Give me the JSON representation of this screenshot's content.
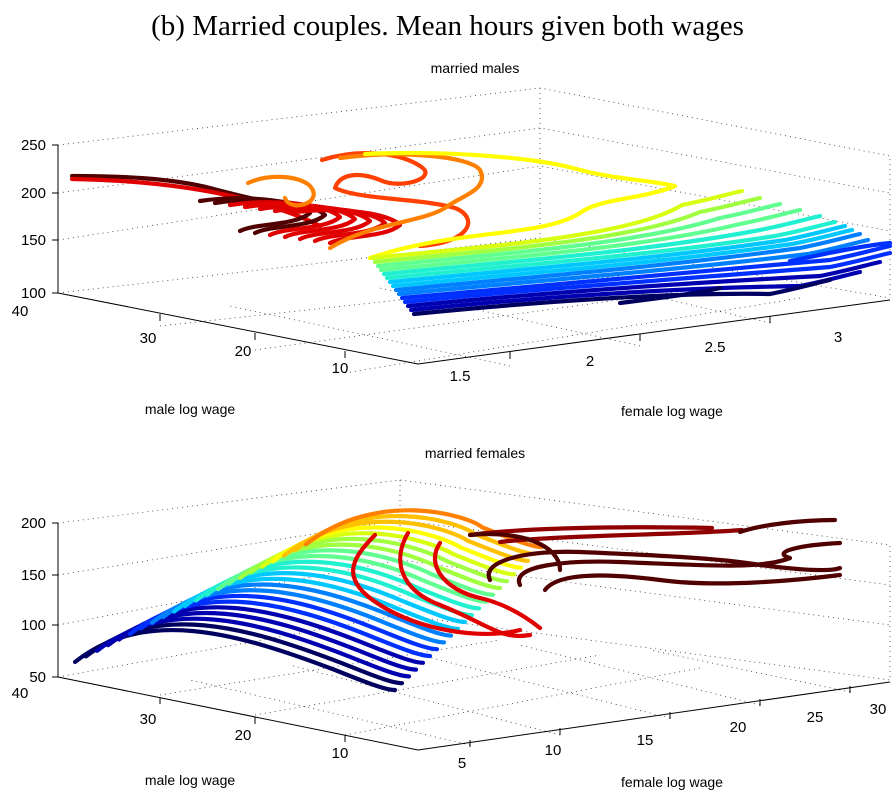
{
  "figure": {
    "title": "(b) Married couples. Mean hours given both wages"
  },
  "chart_data": [
    {
      "type": "contour3d",
      "title": "married males",
      "xlabel": "female log wage",
      "ylabel": "male log wage",
      "zlabel": "",
      "xlim": [
        1.3,
        3.6
      ],
      "ylim": [
        5,
        42
      ],
      "zlim": [
        100,
        250
      ],
      "xticks": [
        "1.5",
        "2",
        "2.5",
        "3"
      ],
      "yticks": [
        "40",
        "30",
        "20",
        "10"
      ],
      "zticks": [
        "100",
        "150",
        "200",
        "250"
      ],
      "grid": true,
      "colormap": "jet",
      "note_levels": "contour levels run from dark blue (low hours) to dark red (high hours)"
    },
    {
      "type": "contour3d",
      "title": "married females",
      "xlabel": "female log wage",
      "ylabel": "male log wage",
      "zlabel": "",
      "xlim": [
        3,
        32
      ],
      "ylim": [
        5,
        42
      ],
      "zlim": [
        50,
        200
      ],
      "xticks": [
        "5",
        "10",
        "15",
        "20",
        "25",
        "30"
      ],
      "yticks": [
        "40",
        "30",
        "20",
        "10"
      ],
      "zticks": [
        "50",
        "100",
        "150",
        "200"
      ],
      "grid": true,
      "colormap": "jet"
    }
  ],
  "colors": {
    "jet": [
      "#000060",
      "#0000b0",
      "#0030ff",
      "#0080ff",
      "#00c8ff",
      "#20f0d0",
      "#60ff90",
      "#a0ff40",
      "#d8ff10",
      "#ffff00",
      "#ffc000",
      "#ff8000",
      "#ff4000",
      "#e00000",
      "#900000",
      "#500000"
    ]
  }
}
